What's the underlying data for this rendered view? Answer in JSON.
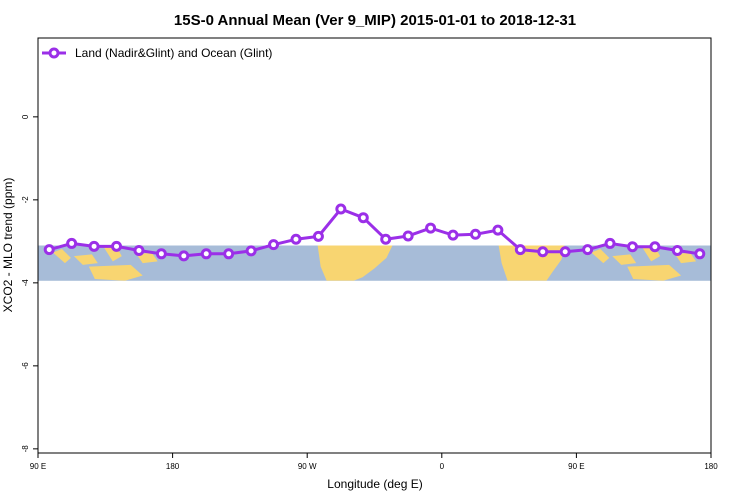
{
  "chart_data": {
    "type": "line",
    "title": "15S-0 Annual Mean (Ver 9_MIP)   2015-01-01 to 2018-12-31",
    "xlabel": "Longitude (deg E)",
    "ylabel": "XCO2 - MLO trend (ppm)",
    "x_ticks": [
      {
        "value": 90,
        "label": "90 E"
      },
      {
        "value": 180,
        "label": "180"
      },
      {
        "value": 270,
        "label": "90 W"
      },
      {
        "value": 360,
        "label": "0"
      },
      {
        "value": 450,
        "label": "90 E"
      },
      {
        "value": 540,
        "label": "180"
      }
    ],
    "y_ticks": [
      {
        "value": 0,
        "label": "0"
      },
      {
        "value": -2,
        "label": "-2"
      },
      {
        "value": -4,
        "label": "-4"
      },
      {
        "value": -6,
        "label": "-6"
      },
      {
        "value": -8,
        "label": "-8"
      }
    ],
    "xlim": [
      90,
      540
    ],
    "ylim": [
      -8.1,
      1.9
    ],
    "grid": false,
    "legend_position": "top-left",
    "map_band_ylim": [
      -3.95,
      -3.1
    ],
    "colors": {
      "series": "#9b2fe8",
      "ocean": "#a7bcd8",
      "land": "#f8d571",
      "frame": "#000000"
    },
    "series": [
      {
        "name": "Land (Nadir&Glint) and Ocean (Glint)",
        "x": [
          97.5,
          112.5,
          127.5,
          142.5,
          157.5,
          172.5,
          187.5,
          202.5,
          217.5,
          232.5,
          247.5,
          262.5,
          277.5,
          292.5,
          307.5,
          322.5,
          337.5,
          352.5,
          367.5,
          382.5,
          397.5,
          412.5,
          427.5,
          442.5,
          457.5,
          472.5,
          487.5,
          502.5,
          517.5,
          532.5
        ],
        "values": [
          -3.2,
          -3.05,
          -3.12,
          -3.12,
          -3.22,
          -3.3,
          -3.35,
          -3.3,
          -3.3,
          -3.23,
          -3.08,
          -2.95,
          -2.88,
          -2.22,
          -2.43,
          -2.95,
          -2.87,
          -2.68,
          -2.85,
          -2.83,
          -2.73,
          -3.2,
          -3.25,
          -3.25,
          -3.2,
          -3.05,
          -3.13,
          -3.13,
          -3.22,
          -3.3
        ]
      }
    ]
  }
}
